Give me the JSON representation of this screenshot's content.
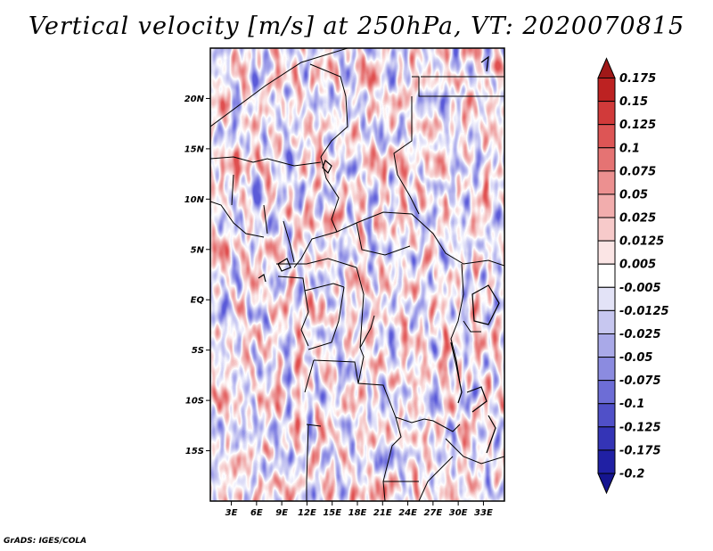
{
  "figure": {
    "title": "Vertical velocity [m/s] at 250hPa, VT: 2020070815",
    "credit": "GrADS: IGES/COLA"
  },
  "chart_data": {
    "type": "heatmap",
    "title": "Vertical velocity [m/s] at 250hPa, VT: 2020070815",
    "variable": "Vertical velocity",
    "units": "m/s",
    "level": "250hPa",
    "valid_time": "2020070815",
    "x_ticks": [
      "3E",
      "6E",
      "9E",
      "12E",
      "15E",
      "18E",
      "21E",
      "24E",
      "27E",
      "30E",
      "33E"
    ],
    "x_tick_values": [
      3,
      6,
      9,
      12,
      15,
      18,
      21,
      24,
      27,
      30,
      33
    ],
    "y_ticks": [
      "20N",
      "15N",
      "10N",
      "5N",
      "EQ",
      "5S",
      "10S",
      "15S"
    ],
    "y_tick_values": [
      20,
      15,
      10,
      5,
      0,
      -5,
      -10,
      -15
    ],
    "xlim": [
      0.5,
      35.5
    ],
    "ylim": [
      -20,
      25
    ],
    "colorbar": {
      "labels": [
        "0.175",
        "0.15",
        "0.125",
        "0.1",
        "0.075",
        "0.05",
        "0.025",
        "0.0125",
        "0.005",
        "-0.005",
        "-0.0125",
        "-0.025",
        "-0.05",
        "-0.075",
        "-0.1",
        "-0.125",
        "-0.175",
        "-0.2"
      ],
      "colors": [
        "#a01818",
        "#bd2222",
        "#d13a3a",
        "#dd5555",
        "#e57373",
        "#ec9090",
        "#f2adad",
        "#f7caca",
        "#fbe5e5",
        "#ffffff",
        "#e3e3f7",
        "#c7c7f0",
        "#a9a9e8",
        "#8b8be0",
        "#6d6dd6",
        "#5050c8",
        "#3434b6",
        "#2020a4",
        "#151590"
      ]
    }
  }
}
